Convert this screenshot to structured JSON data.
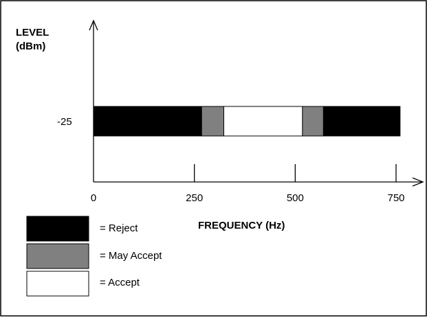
{
  "chart_data": {
    "type": "frequency-band-diagram",
    "y_axis_label_line1": "LEVEL",
    "y_axis_label_line2": "(dBm)",
    "y_level_label": "-25",
    "x_axis_label": "FREQUENCY (Hz)",
    "x_ticks": [
      "0",
      "250",
      "500",
      "750"
    ],
    "x_tick_values": [
      0,
      250,
      500,
      750
    ],
    "band_segments": [
      {
        "category": "reject",
        "start_hz": 0,
        "end_hz": 268
      },
      {
        "category": "may_accept",
        "start_hz": 268,
        "end_hz": 323
      },
      {
        "category": "accept",
        "start_hz": 323,
        "end_hz": 518
      },
      {
        "category": "may_accept",
        "start_hz": 518,
        "end_hz": 570
      },
      {
        "category": "reject",
        "start_hz": 570,
        "end_hz": 760
      }
    ],
    "colors": {
      "reject": "#000000",
      "may_accept": "#808080",
      "accept": "#ffffff"
    }
  },
  "legend": [
    {
      "category": "reject",
      "label": "= Reject"
    },
    {
      "category": "may_accept",
      "label": "= May Accept"
    },
    {
      "category": "accept",
      "label": "= Accept"
    }
  ]
}
